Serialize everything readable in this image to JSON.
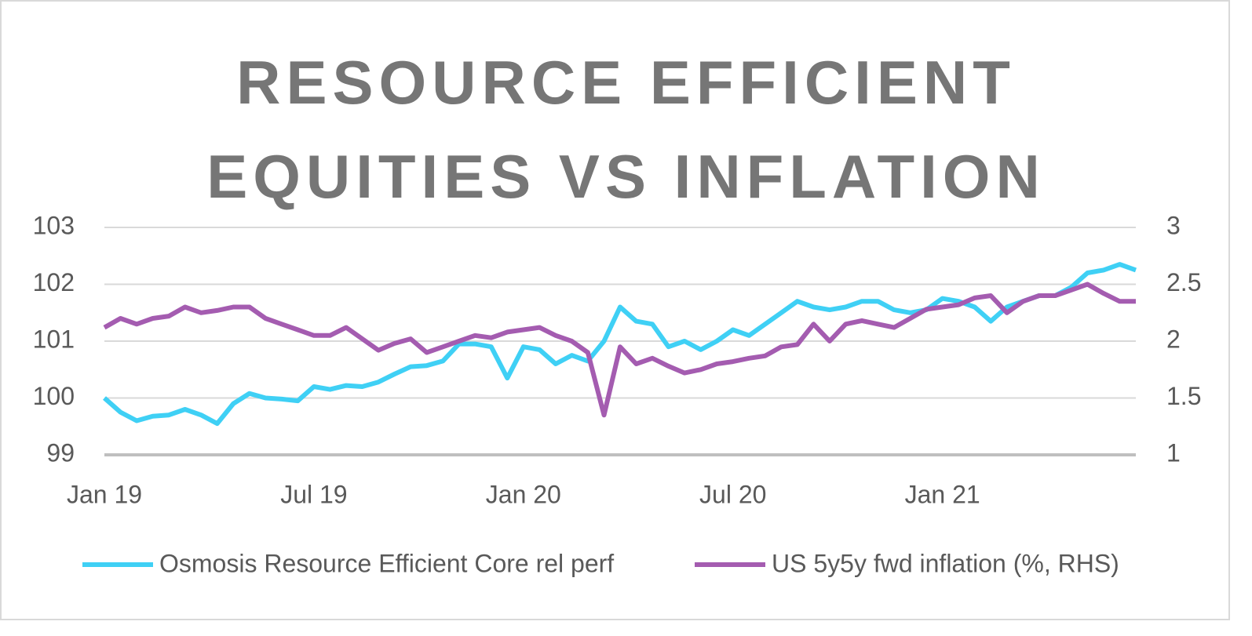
{
  "chart_data": {
    "type": "line",
    "title": "RESOURCE EFFICIENT EQUITIES VS INFLATION",
    "categories": [
      "Jan 19",
      null,
      null,
      null,
      null,
      null,
      null,
      null,
      null,
      null,
      null,
      null,
      null,
      "Jul 19",
      null,
      null,
      null,
      null,
      null,
      null,
      null,
      null,
      null,
      null,
      null,
      null,
      "Jan 20",
      null,
      null,
      null,
      null,
      null,
      null,
      null,
      null,
      null,
      null,
      null,
      null,
      "Jul 20",
      null,
      null,
      null,
      null,
      null,
      null,
      null,
      null,
      null,
      null,
      null,
      null,
      "Jan 21",
      null,
      null,
      null,
      null,
      null,
      null,
      null,
      null,
      null,
      null,
      null,
      null
    ],
    "series": [
      {
        "name": "Osmosis Resource Efficient Core rel perf",
        "color": "#3fd0f5",
        "axis": "y",
        "values": [
          100.0,
          99.75,
          99.6,
          99.68,
          99.7,
          99.8,
          99.7,
          99.55,
          99.9,
          100.08,
          100.0,
          99.98,
          99.95,
          100.2,
          100.15,
          100.22,
          100.2,
          100.28,
          100.42,
          100.55,
          100.57,
          100.65,
          100.95,
          100.95,
          100.9,
          100.35,
          100.9,
          100.85,
          100.6,
          100.75,
          100.65,
          101.0,
          101.6,
          101.35,
          101.3,
          100.9,
          101.0,
          100.85,
          101.0,
          101.2,
          101.1,
          101.3,
          101.5,
          101.7,
          101.6,
          101.55,
          101.6,
          101.7,
          101.7,
          101.55,
          101.5,
          101.55,
          101.75,
          101.7,
          101.6,
          101.35,
          101.6,
          101.7,
          101.8,
          101.8,
          101.95,
          102.2,
          102.25,
          102.35,
          102.25
        ]
      },
      {
        "name": "US 5y5y fwd inflation (%, RHS)",
        "color": "#a45cb0",
        "axis": "y2",
        "values": [
          2.12,
          2.2,
          2.15,
          2.2,
          2.22,
          2.3,
          2.25,
          2.27,
          2.3,
          2.3,
          2.2,
          2.15,
          2.1,
          2.05,
          2.05,
          2.12,
          2.02,
          1.92,
          1.98,
          2.02,
          1.9,
          1.95,
          2.0,
          2.05,
          2.03,
          2.08,
          2.1,
          2.12,
          2.05,
          2.0,
          1.9,
          1.35,
          1.95,
          1.8,
          1.85,
          1.78,
          1.72,
          1.75,
          1.8,
          1.82,
          1.85,
          1.87,
          1.95,
          1.97,
          2.15,
          2.0,
          2.15,
          2.18,
          2.15,
          2.12,
          2.2,
          2.28,
          2.3,
          2.32,
          2.38,
          2.4,
          2.25,
          2.35,
          2.4,
          2.4,
          2.45,
          2.5,
          2.42,
          2.35,
          2.35
        ]
      }
    ],
    "ylim": [
      99,
      103
    ],
    "yticks": [
      99,
      100,
      101,
      102,
      103
    ],
    "y2lim": [
      1,
      3
    ],
    "y2ticks": [
      1,
      1.5,
      2,
      2.5,
      3
    ],
    "grid": true,
    "legend": "bottom"
  }
}
